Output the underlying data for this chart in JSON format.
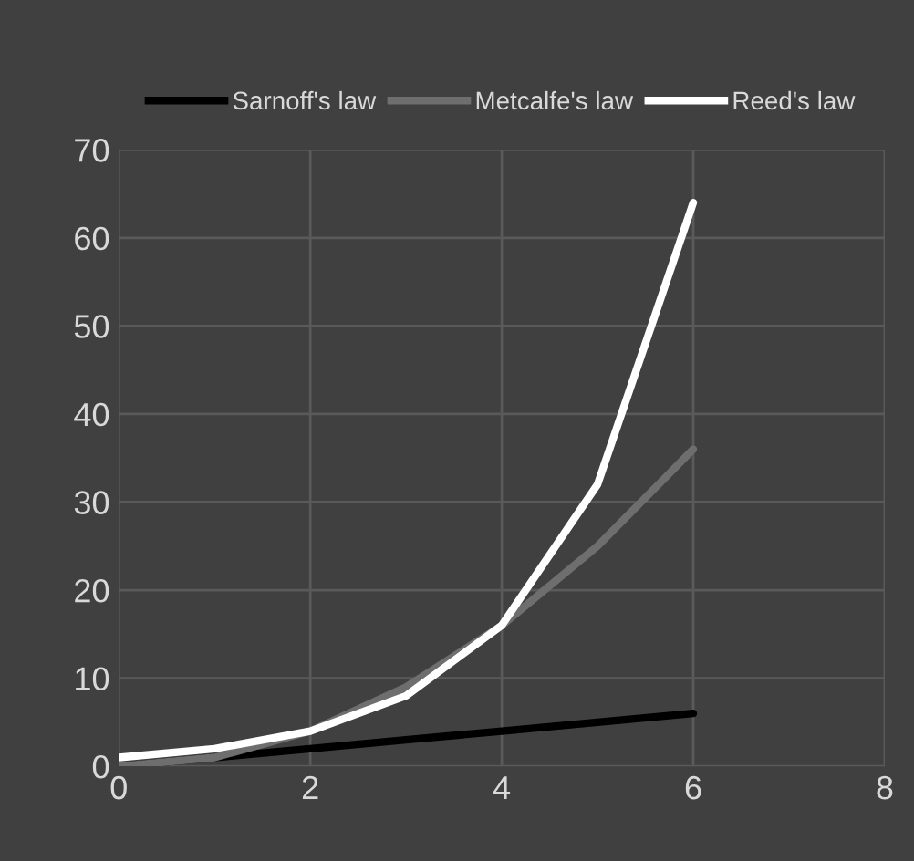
{
  "chart_data": {
    "type": "line",
    "x": [
      0,
      1,
      2,
      3,
      4,
      5,
      6
    ],
    "series": [
      {
        "name": "Sarnoff's law",
        "color": "#000000",
        "values": [
          0,
          1,
          2,
          3,
          4,
          5,
          6
        ]
      },
      {
        "name": "Metcalfe's law",
        "color": "#6e6e6e",
        "values": [
          0,
          1,
          4,
          9,
          16,
          25,
          36
        ]
      },
      {
        "name": "Reed's law",
        "color": "#ffffff",
        "values": [
          1,
          2,
          4,
          8,
          16,
          32,
          64
        ]
      }
    ],
    "xlim": [
      0,
      8
    ],
    "xticks": [
      0,
      2,
      4,
      6,
      8
    ],
    "ylim": [
      0,
      70
    ],
    "yticks": [
      0,
      10,
      20,
      30,
      40,
      50,
      60,
      70
    ],
    "grid": true,
    "legend": "top",
    "marker": "none",
    "line_style": "solid"
  }
}
